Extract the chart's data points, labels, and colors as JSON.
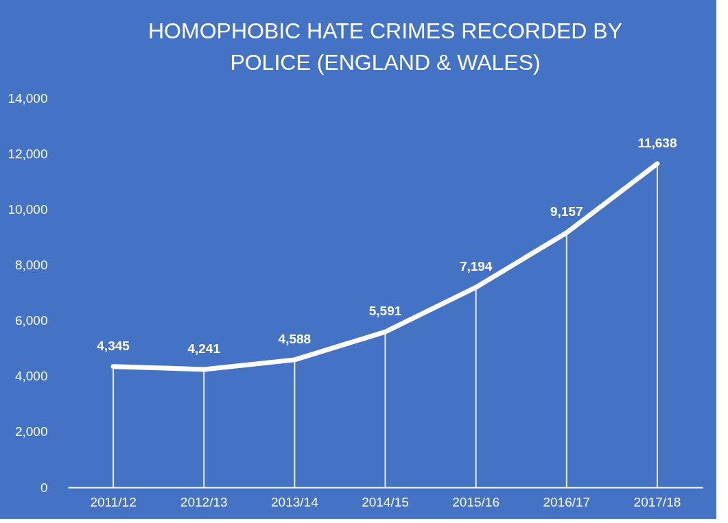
{
  "chart_data": {
    "type": "line",
    "title": "HOMOPHOBIC HATE CRIMES RECORDED BY POLICE (ENGLAND & WALES)",
    "categories": [
      "2011/12",
      "2012/13",
      "2013/14",
      "2014/15",
      "2015/16",
      "2016/17",
      "2017/18"
    ],
    "series": [
      {
        "color": "#ffffff",
        "values": [
          4345,
          4241,
          4588,
          5591,
          7194,
          9157,
          11638
        ]
      }
    ],
    "ylim": [
      0,
      14000
    ],
    "yticks": [
      {
        "value": 0,
        "label": "0"
      },
      {
        "value": 2000,
        "label": "2,000"
      },
      {
        "value": 4000,
        "label": "4,000"
      },
      {
        "value": 6000,
        "label": "6,000"
      },
      {
        "value": 8000,
        "label": "8,000"
      },
      {
        "value": 10000,
        "label": "10,000"
      },
      {
        "value": 12000,
        "label": "12,000"
      },
      {
        "value": 14000,
        "label": "14,000"
      }
    ],
    "value_labels": [
      "4,345",
      "4,241",
      "4,588",
      "5,591",
      "7,194",
      "9,157",
      "11,638"
    ],
    "grid": "x",
    "legend": false,
    "marker": "none",
    "line_style": "solid"
  }
}
